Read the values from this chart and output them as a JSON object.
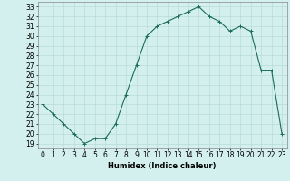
{
  "x": [
    0,
    1,
    2,
    3,
    4,
    5,
    6,
    7,
    8,
    9,
    10,
    11,
    12,
    13,
    14,
    15,
    16,
    17,
    18,
    19,
    20,
    21,
    22,
    23
  ],
  "y": [
    23,
    22,
    21,
    20,
    19,
    19.5,
    19.5,
    21,
    24,
    27,
    30,
    31,
    31.5,
    32,
    32.5,
    33,
    32,
    31.5,
    30.5,
    31,
    30.5,
    26.5,
    26.5,
    20
  ],
  "line_color": "#1a6b5a",
  "marker": "+",
  "markersize": 3,
  "linewidth": 0.8,
  "xlabel": "Humidex (Indice chaleur)",
  "xlabel_fontsize": 6,
  "ylabel_ticks": [
    19,
    20,
    21,
    22,
    23,
    24,
    25,
    26,
    27,
    28,
    29,
    30,
    31,
    32,
    33
  ],
  "xlim": [
    -0.5,
    23.5
  ],
  "ylim": [
    18.5,
    33.5
  ],
  "bg_color": "#d4f0ee",
  "grid_color": "#b8dbd8",
  "tick_fontsize": 5.5
}
